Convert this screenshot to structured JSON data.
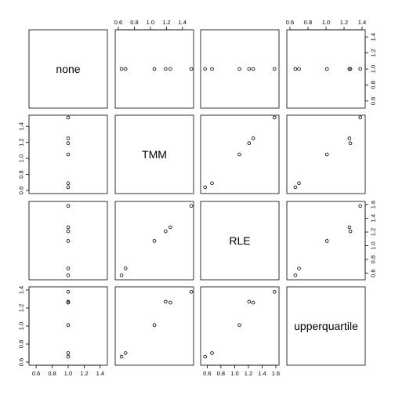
{
  "chart_data": {
    "type": "scatter",
    "variables": [
      "none",
      "TMM",
      "RLE",
      "upperquartile"
    ],
    "values": {
      "none": [
        1.0,
        1.0,
        1.0,
        1.0,
        1.0,
        1.0
      ],
      "TMM": [
        0.64,
        0.69,
        1.05,
        1.19,
        1.25,
        1.51
      ],
      "RLE": [
        0.57,
        0.67,
        1.07,
        1.21,
        1.27,
        1.58
      ],
      "upperquartile": [
        0.66,
        0.7,
        1.01,
        1.27,
        1.26,
        1.38
      ]
    },
    "axis_ranges": {
      "none": [
        0.55,
        1.45
      ],
      "TMM": [
        0.6,
        1.5
      ],
      "RLE": [
        0.55,
        1.6
      ],
      "upperquartile": [
        0.6,
        1.4
      ]
    },
    "ticks": {
      "none": [
        0.6,
        0.8,
        1.0,
        1.2,
        1.4
      ],
      "TMM": [
        0.6,
        0.8,
        1.0,
        1.2,
        1.4
      ],
      "RLE": [
        0.6,
        0.8,
        1.0,
        1.2,
        1.4,
        1.6
      ],
      "upperquartile": [
        0.6,
        0.8,
        1.0,
        1.2,
        1.4
      ]
    },
    "tick_labels": {
      "none": [
        "0.6",
        "0.8",
        "1.0",
        "1.2",
        "1.4"
      ],
      "TMM": [
        "0.6",
        "0.8",
        "1.0",
        "1.2",
        "1.4"
      ],
      "RLE": [
        "0.6",
        "0.8",
        "1.0",
        "1.2",
        "1.4",
        "1.6"
      ],
      "upperquartile": [
        "0.6",
        "0.8",
        "1.0",
        "1.2",
        "1.4"
      ]
    },
    "grid": false,
    "legend": "none"
  }
}
